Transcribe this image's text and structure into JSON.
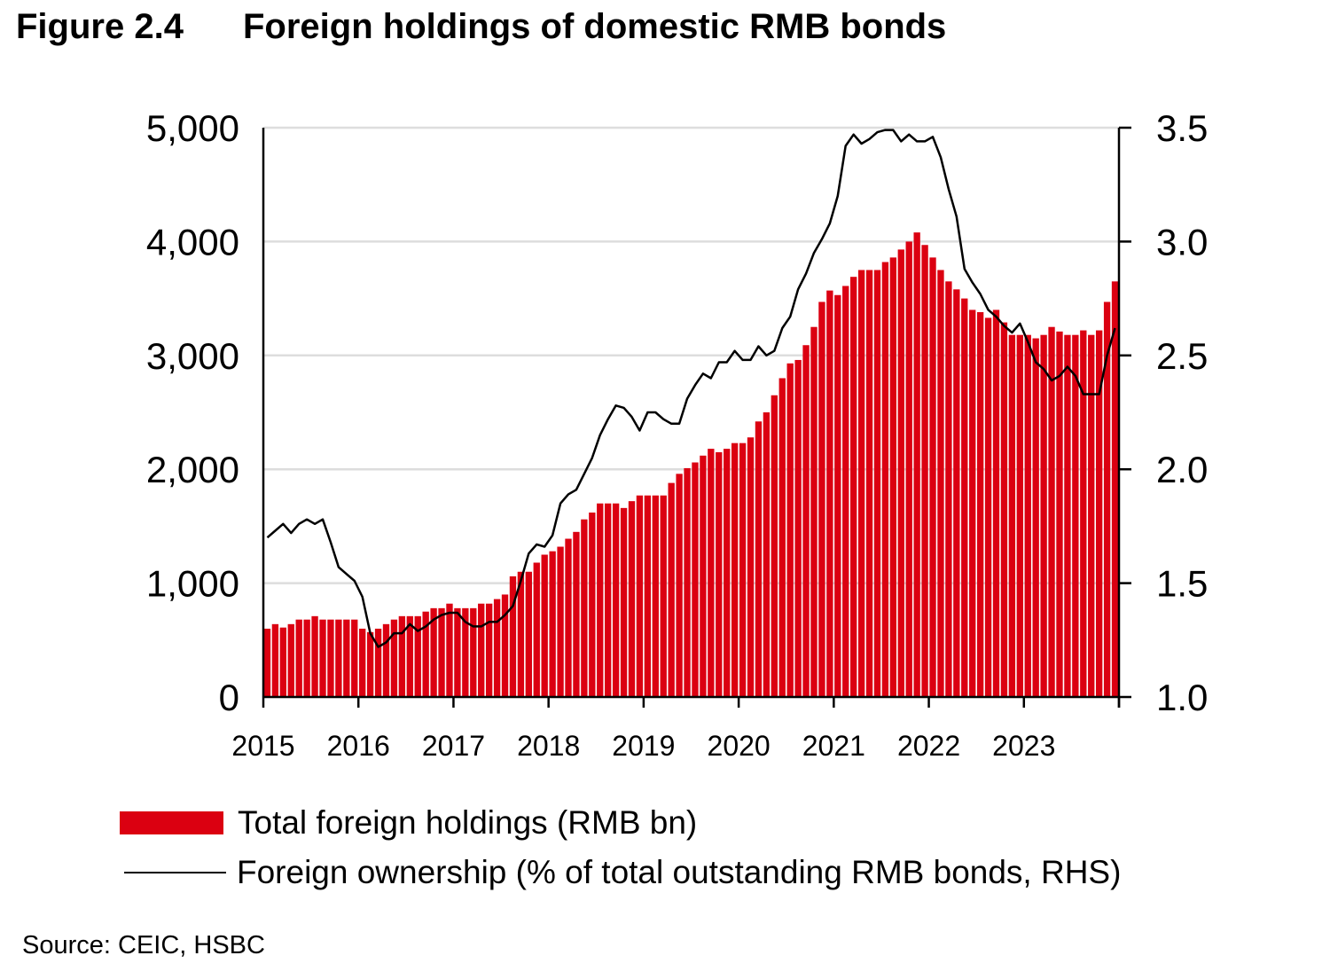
{
  "title": {
    "figure": "Figure 2.4",
    "text": "Foreign holdings of domestic RMB bonds"
  },
  "source": "Source: CEIC, HSBC",
  "colors": {
    "bar": "#DB0011",
    "line": "#000000",
    "grid": "#DDDDDD"
  },
  "chart_data": {
    "type": "bar",
    "title": "Foreign holdings of domestic RMB bonds",
    "x_start": 2015,
    "frequency": "monthly",
    "x_range": [
      2015,
      2024
    ],
    "x_tick_labels": [
      "2015",
      "2016",
      "2017",
      "2018",
      "2019",
      "2020",
      "2021",
      "2022",
      "2023"
    ],
    "y_left": {
      "range": [
        0,
        5000
      ],
      "tick_labels": [
        "0",
        "1,000",
        "2,000",
        "3,000",
        "4,000",
        "5,000"
      ],
      "ticks": [
        0,
        1000,
        2000,
        3000,
        4000,
        5000
      ]
    },
    "y_right": {
      "range": [
        1.0,
        3.5
      ],
      "tick_labels": [
        "1.0",
        "1.5",
        "2.0",
        "2.5",
        "3.0",
        "3.5"
      ],
      "ticks": [
        1.0,
        1.5,
        2.0,
        2.5,
        3.0,
        3.5
      ]
    },
    "grid": true,
    "legend_position": "bottom",
    "series": [
      {
        "name": "Total foreign holdings (RMB bn)",
        "type": "bar",
        "axis": "left",
        "values": [
          600,
          640,
          610,
          640,
          680,
          680,
          710,
          680,
          680,
          680,
          680,
          680,
          600,
          570,
          600,
          640,
          680,
          710,
          710,
          710,
          750,
          780,
          780,
          820,
          780,
          780,
          780,
          820,
          820,
          860,
          900,
          1060,
          1100,
          1100,
          1180,
          1250,
          1280,
          1320,
          1390,
          1450,
          1560,
          1620,
          1700,
          1700,
          1700,
          1660,
          1720,
          1770,
          1770,
          1770,
          1770,
          1880,
          1960,
          2010,
          2060,
          2120,
          2180,
          2150,
          2180,
          2230,
          2230,
          2280,
          2420,
          2500,
          2650,
          2800,
          2930,
          2960,
          3090,
          3250,
          3470,
          3570,
          3530,
          3610,
          3690,
          3750,
          3750,
          3750,
          3820,
          3860,
          3930,
          4000,
          4080,
          3970,
          3860,
          3750,
          3650,
          3580,
          3500,
          3400,
          3380,
          3330,
          3400,
          3290,
          3180,
          3180,
          3180,
          3150,
          3180,
          3250,
          3210,
          3180,
          3180,
          3220,
          3180,
          3220,
          3470,
          3650
        ]
      },
      {
        "name": "Foreign ownership (% of total outstanding RMB bonds, RHS)",
        "type": "line",
        "axis": "right",
        "values": [
          1.7,
          1.73,
          1.76,
          1.72,
          1.76,
          1.78,
          1.76,
          1.78,
          1.68,
          1.57,
          1.54,
          1.51,
          1.44,
          1.28,
          1.22,
          1.24,
          1.28,
          1.28,
          1.32,
          1.29,
          1.31,
          1.34,
          1.36,
          1.37,
          1.37,
          1.33,
          1.31,
          1.31,
          1.33,
          1.33,
          1.36,
          1.4,
          1.51,
          1.63,
          1.67,
          1.66,
          1.71,
          1.85,
          1.89,
          1.91,
          1.98,
          2.05,
          2.15,
          2.22,
          2.28,
          2.27,
          2.23,
          2.17,
          2.25,
          2.25,
          2.22,
          2.2,
          2.2,
          2.31,
          2.37,
          2.42,
          2.4,
          2.47,
          2.47,
          2.52,
          2.48,
          2.48,
          2.54,
          2.5,
          2.52,
          2.62,
          2.67,
          2.79,
          2.86,
          2.95,
          3.01,
          3.08,
          3.2,
          3.42,
          3.47,
          3.43,
          3.45,
          3.48,
          3.49,
          3.49,
          3.44,
          3.47,
          3.44,
          3.44,
          3.46,
          3.37,
          3.23,
          3.11,
          2.88,
          2.82,
          2.77,
          2.7,
          2.67,
          2.63,
          2.6,
          2.64,
          2.56,
          2.47,
          2.44,
          2.39,
          2.41,
          2.45,
          2.41,
          2.33,
          2.33,
          2.33,
          2.5,
          2.62
        ]
      }
    ]
  }
}
